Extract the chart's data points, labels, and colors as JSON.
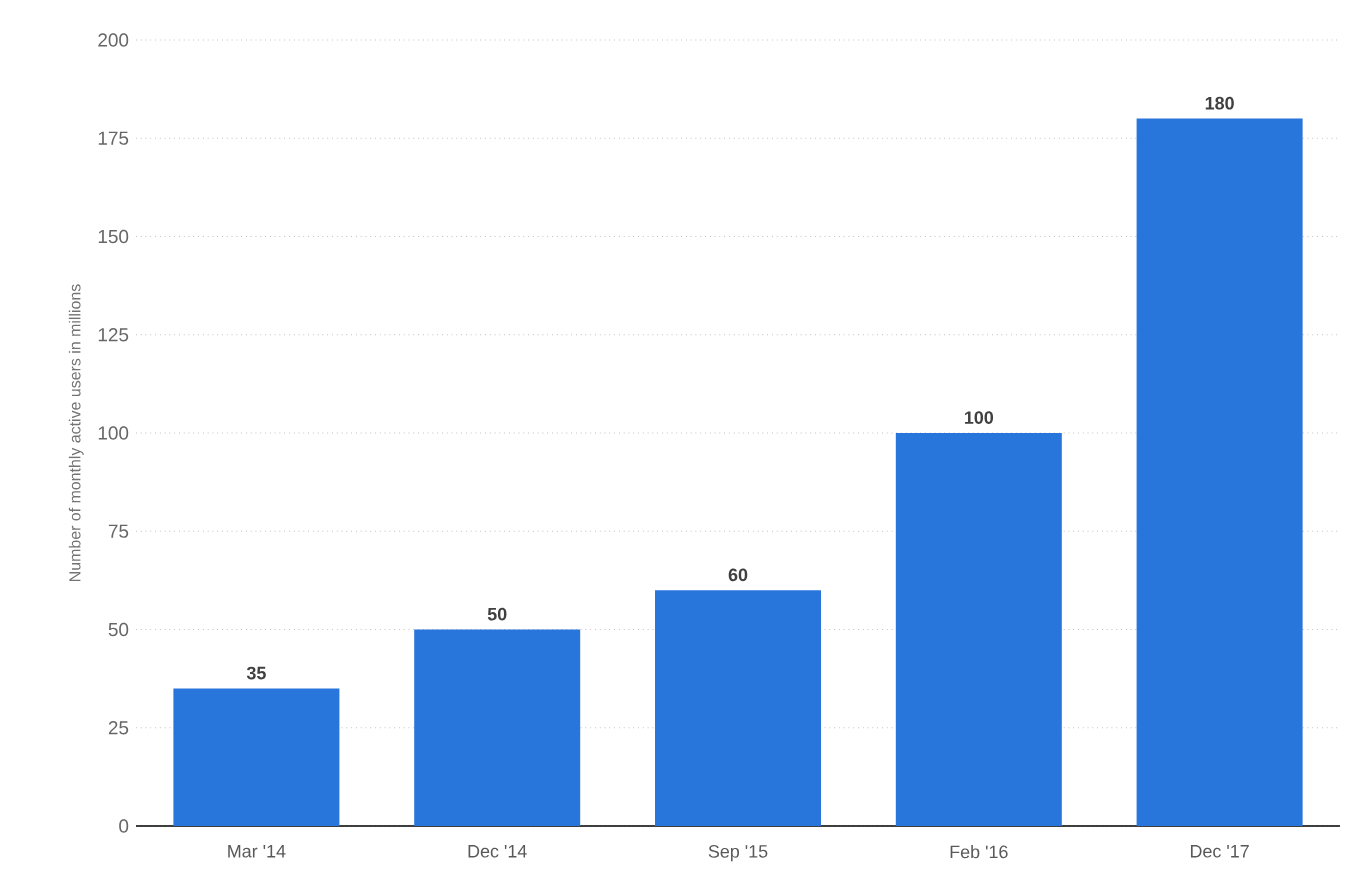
{
  "chart_data": {
    "type": "bar",
    "ylabel": "Number of monthly active users in millions",
    "categories": [
      "Mar '14",
      "Dec '14",
      "Sep '15",
      "Feb '16",
      "Dec '17"
    ],
    "values": [
      35,
      50,
      60,
      100,
      180
    ],
    "color": "#2875dc",
    "ylim": [
      0,
      200
    ],
    "yticks": [
      0,
      25,
      50,
      75,
      100,
      125,
      150,
      175,
      200
    ],
    "grid": "y",
    "data_labels": true
  }
}
